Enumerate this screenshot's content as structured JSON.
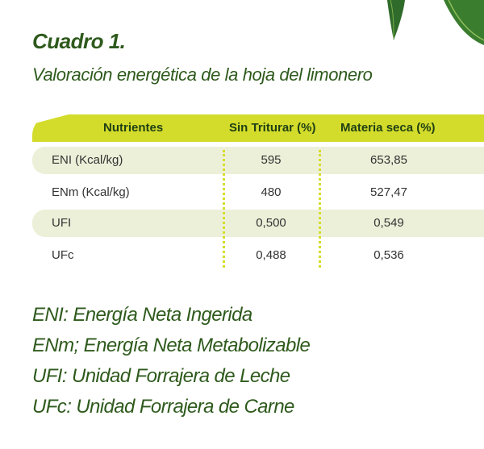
{
  "header": {
    "title": "Cuadro 1.",
    "subtitle": "Valoración energética de la hoja del limonero"
  },
  "table": {
    "columns": [
      "Nutrientes",
      "Sin Triturar (%)",
      "Materia seca (%)"
    ],
    "rows": [
      {
        "label": "ENI (Kcal/kg)",
        "sin_triturar": "595",
        "materia_seca": "653,85",
        "shaded": true
      },
      {
        "label": "ENm (Kcal/kg)",
        "sin_triturar": "480",
        "materia_seca": "527,47",
        "shaded": false
      },
      {
        "label": "UFI",
        "sin_triturar": "0,500",
        "materia_seca": "0,549",
        "shaded": true
      },
      {
        "label": "UFc",
        "sin_triturar": "0,488",
        "materia_seca": "0,536",
        "shaded": false
      }
    ]
  },
  "footnotes": [
    "ENI: Energía Neta Ingerida",
    "ENm; Energía Neta Metabolizable",
    "UFI: Unidad Forrajera de Leche",
    "UFc: Unidad Forrajera de Carne"
  ],
  "colors": {
    "title_green": "#2e5a1c",
    "header_band": "#d3dc2b",
    "row_shade": "#edf0d9",
    "dot_divider": "#d6dd2a"
  },
  "icons": {
    "corner_decoration": "leaf-icon"
  }
}
